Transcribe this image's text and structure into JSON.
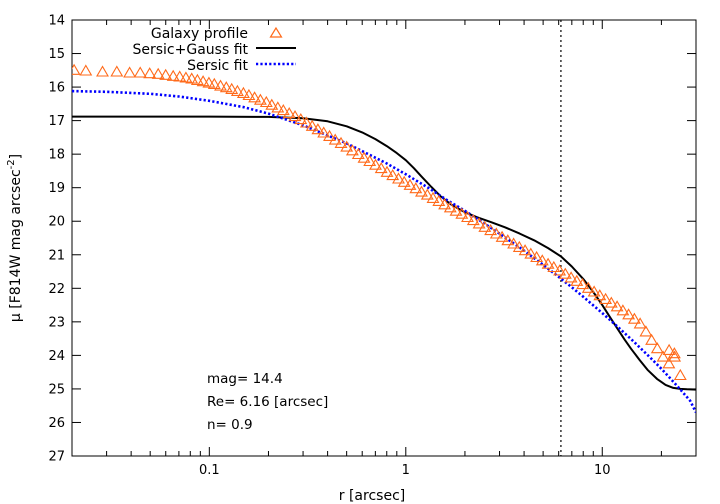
{
  "chart_data": {
    "type": "scatter",
    "xlabel": "r [arcsec]",
    "ylabel_main": "μ [F814W mag arcsec",
    "ylabel_sup": "-2",
    "ylabel_close": "]",
    "x_scale": "log",
    "xlim": [
      0.02,
      30
    ],
    "ylim": [
      27,
      14
    ],
    "y_inverted": true,
    "grid": false,
    "legend_position": "top-left",
    "x_ticks": [
      {
        "value": 0.1,
        "label": "0.1"
      },
      {
        "value": 1,
        "label": "1"
      },
      {
        "value": 10,
        "label": "10"
      }
    ],
    "y_ticks": [
      {
        "value": 14,
        "label": "14"
      },
      {
        "value": 15,
        "label": "15"
      },
      {
        "value": 16,
        "label": "16"
      },
      {
        "value": 17,
        "label": "17"
      },
      {
        "value": 18,
        "label": "18"
      },
      {
        "value": 19,
        "label": "19"
      },
      {
        "value": 20,
        "label": "20"
      },
      {
        "value": 21,
        "label": "21"
      },
      {
        "value": 22,
        "label": "22"
      },
      {
        "value": 23,
        "label": "23"
      },
      {
        "value": 24,
        "label": "24"
      },
      {
        "value": 25,
        "label": "25"
      },
      {
        "value": 26,
        "label": "26"
      },
      {
        "value": 27,
        "label": "27"
      }
    ],
    "vertical_line": {
      "x": 6.16,
      "style": "dotted",
      "color": "#000000"
    },
    "annotations": [
      "mag= 14.4",
      "Re= 6.16 [arcsec]",
      "n= 0.9"
    ],
    "series": [
      {
        "name": "Galaxy profile",
        "kind": "points",
        "marker": "triangle",
        "color": "#ff6a1a",
        "x": [
          0.0205,
          0.0235,
          0.0286,
          0.0338,
          0.0393,
          0.0445,
          0.0497,
          0.0549,
          0.06,
          0.0655,
          0.0707,
          0.076,
          0.0813,
          0.087,
          0.093,
          0.0995,
          0.106,
          0.114,
          0.122,
          0.13,
          0.139,
          0.149,
          0.159,
          0.17,
          0.182,
          0.195,
          0.208,
          0.223,
          0.238,
          0.255,
          0.273,
          0.292,
          0.312,
          0.334,
          0.357,
          0.382,
          0.409,
          0.437,
          0.468,
          0.5,
          0.535,
          0.573,
          0.613,
          0.655,
          0.701,
          0.75,
          0.802,
          0.858,
          0.918,
          0.982,
          1.05,
          1.124,
          1.202,
          1.286,
          1.376,
          1.472,
          1.575,
          1.685,
          1.802,
          1.928,
          2.062,
          2.206,
          2.36,
          2.525,
          2.701,
          2.889,
          3.09,
          3.306,
          3.537,
          3.783,
          4.047,
          4.329,
          4.631,
          4.954,
          5.3,
          5.669,
          6.064,
          6.487,
          6.94,
          7.424,
          7.941,
          8.495,
          9.087,
          9.72,
          10.4,
          11.12,
          11.9,
          12.73,
          13.62,
          14.57,
          15.58,
          16.67,
          17.83,
          19.07,
          20.4,
          21.83,
          23.35,
          24.97
        ],
        "y": [
          15.5,
          15.52,
          15.55,
          15.55,
          15.58,
          15.58,
          15.6,
          15.62,
          15.65,
          15.68,
          15.7,
          15.73,
          15.76,
          15.8,
          15.84,
          15.88,
          15.92,
          15.97,
          16.02,
          16.07,
          16.13,
          16.19,
          16.25,
          16.32,
          16.39,
          16.46,
          16.54,
          16.62,
          16.7,
          16.79,
          16.88,
          16.97,
          17.07,
          17.17,
          17.27,
          17.37,
          17.47,
          17.58,
          17.68,
          17.79,
          17.9,
          18.01,
          18.12,
          18.22,
          18.33,
          18.43,
          18.54,
          18.64,
          18.74,
          18.84,
          18.93,
          19.03,
          19.13,
          19.22,
          19.32,
          19.41,
          19.51,
          19.6,
          19.7,
          19.79,
          19.89,
          19.98,
          20.08,
          20.18,
          20.28,
          20.38,
          20.48,
          20.58,
          20.68,
          20.78,
          20.88,
          20.98,
          21.08,
          21.18,
          21.28,
          21.38,
          21.48,
          21.58,
          21.69,
          21.79,
          21.89,
          22.0,
          22.11,
          22.22,
          22.33,
          22.44,
          22.55,
          22.67,
          22.79,
          22.92,
          23.06,
          23.3,
          23.55,
          23.8,
          24.05,
          24.25,
          24.05,
          24.6
        ],
        "extra_points": [
          {
            "x": 21.9,
            "y": 23.85
          },
          {
            "x": 23.3,
            "y": 23.95
          }
        ]
      },
      {
        "name": "Sersic+Gauss fit",
        "kind": "line",
        "style": "solid",
        "color": "#000000",
        "x": [
          0.02,
          0.05,
          0.1,
          0.2,
          0.3,
          0.4,
          0.5,
          0.6,
          0.7,
          0.8,
          0.9,
          1.0,
          1.1,
          1.2,
          1.35,
          1.5,
          1.7,
          2.0,
          2.3,
          2.7,
          3.2,
          3.8,
          4.5,
          5.3,
          6.16,
          7.0,
          8.0,
          9.0,
          10.0,
          11.0,
          12.0,
          13.0,
          14.0,
          15.5,
          17.0,
          19.0,
          21.0,
          23.0,
          25.0,
          27.0,
          30.0
        ],
        "y": [
          16.88,
          16.88,
          16.88,
          16.89,
          16.93,
          17.02,
          17.17,
          17.35,
          17.55,
          17.76,
          17.97,
          18.18,
          18.42,
          18.66,
          18.98,
          19.25,
          19.5,
          19.73,
          19.88,
          20.02,
          20.18,
          20.37,
          20.57,
          20.8,
          21.05,
          21.35,
          21.72,
          22.11,
          22.5,
          22.88,
          23.22,
          23.53,
          23.8,
          24.14,
          24.43,
          24.7,
          24.88,
          24.97,
          25.0,
          25.01,
          25.02
        ]
      },
      {
        "name": "Sersic fit",
        "kind": "line",
        "style": "dotted",
        "color": "#0000ff",
        "x": [
          0.02,
          0.03,
          0.05,
          0.07,
          0.1,
          0.15,
          0.2,
          0.3,
          0.4,
          0.5,
          0.6,
          0.8,
          1.0,
          1.3,
          1.6,
          2.0,
          2.5,
          3.0,
          3.5,
          4.0,
          5.0,
          6.0,
          7.0,
          8.0,
          9.0,
          10.0,
          12.0,
          14.0,
          16.0,
          18.0,
          20.0,
          22.0,
          25.0,
          28.0,
          30.0
        ],
        "y": [
          16.12,
          16.14,
          16.2,
          16.28,
          16.41,
          16.6,
          16.79,
          17.14,
          17.44,
          17.68,
          17.91,
          18.28,
          18.6,
          19.0,
          19.35,
          19.69,
          20.06,
          20.37,
          20.64,
          20.88,
          21.3,
          21.66,
          21.97,
          22.25,
          22.51,
          22.74,
          23.15,
          23.51,
          23.84,
          24.13,
          24.4,
          24.66,
          25.02,
          25.35,
          25.7
        ]
      }
    ]
  }
}
